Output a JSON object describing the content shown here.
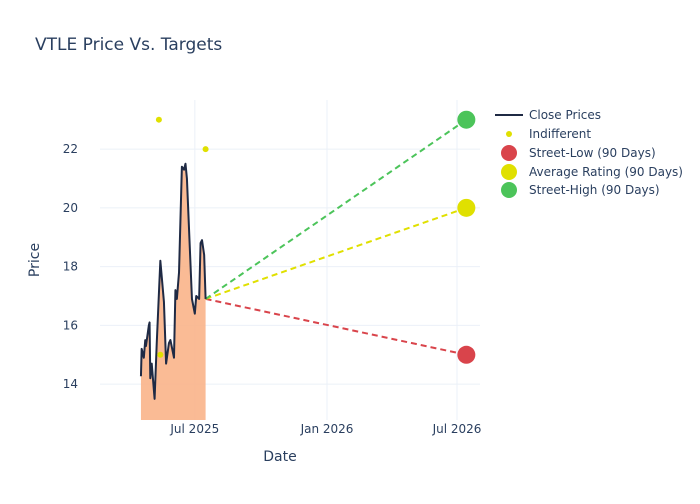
{
  "chart_data": {
    "type": "line",
    "title": "VTLE Price Vs. Targets",
    "xlabel": "Date",
    "ylabel": "Price",
    "xlim": [
      "2025-02-19",
      "2026-08-02"
    ],
    "ylim": [
      12.78,
      23.67
    ],
    "x_ticks": [
      {
        "date": "2025-07-01",
        "label": "Jul 2025"
      },
      {
        "date": "2026-01-01",
        "label": "Jan 2026"
      },
      {
        "date": "2026-07-01",
        "label": "Jul 2026"
      }
    ],
    "y_ticks": [
      14,
      16,
      18,
      20,
      22
    ],
    "grid": true,
    "legend_position": "right",
    "colors": {
      "close": "#1f2a44",
      "fill": "#f9b48a",
      "indifferent": "#e0e000",
      "low": "#d9444b",
      "avg": "#e0e000",
      "high": "#4cc45a"
    },
    "series": [
      {
        "name": "Close Prices",
        "points": [
          [
            "2025-04-17",
            14.27
          ],
          [
            "2025-04-18",
            15.2
          ],
          [
            "2025-04-21",
            14.9
          ],
          [
            "2025-04-23",
            15.5
          ],
          [
            "2025-04-24",
            15.3
          ],
          [
            "2025-04-28",
            16.0
          ],
          [
            "2025-04-29",
            16.1
          ],
          [
            "2025-04-30",
            14.2
          ],
          [
            "2025-05-02",
            14.7
          ],
          [
            "2025-05-06",
            13.5
          ],
          [
            "2025-05-09",
            15.4
          ],
          [
            "2025-05-14",
            18.2
          ],
          [
            "2025-05-19",
            16.8
          ],
          [
            "2025-05-22",
            14.7
          ],
          [
            "2025-05-26",
            15.4
          ],
          [
            "2025-05-28",
            15.5
          ],
          [
            "2025-06-02",
            14.9
          ],
          [
            "2025-06-04",
            17.2
          ],
          [
            "2025-06-06",
            16.9
          ],
          [
            "2025-06-09",
            17.8
          ],
          [
            "2025-06-13",
            21.4
          ],
          [
            "2025-06-16",
            21.3
          ],
          [
            "2025-06-18",
            21.5
          ],
          [
            "2025-06-20",
            21.0
          ],
          [
            "2025-06-27",
            16.9
          ],
          [
            "2025-07-01",
            16.4
          ],
          [
            "2025-07-03",
            17.0
          ],
          [
            "2025-07-07",
            16.9
          ],
          [
            "2025-07-09",
            18.8
          ],
          [
            "2025-07-11",
            18.9
          ],
          [
            "2025-07-14",
            18.4
          ],
          [
            "2025-07-16",
            16.9
          ]
        ]
      },
      {
        "name": "Indifferent",
        "points": [
          [
            "2025-05-12",
            23.0
          ],
          [
            "2025-05-14",
            15.0
          ],
          [
            "2025-07-16",
            22.0
          ]
        ]
      },
      {
        "name": "Street-Low (90 Days)",
        "points": [
          [
            "2025-07-16",
            16.9
          ],
          [
            "2026-07-14",
            15.0
          ]
        ]
      },
      {
        "name": "Average Rating (90 Days)",
        "points": [
          [
            "2025-07-16",
            16.9
          ],
          [
            "2026-07-14",
            20.0
          ]
        ]
      },
      {
        "name": "Street-High (90 Days)",
        "points": [
          [
            "2025-07-16",
            16.9
          ],
          [
            "2026-07-14",
            23.0
          ]
        ]
      }
    ]
  }
}
